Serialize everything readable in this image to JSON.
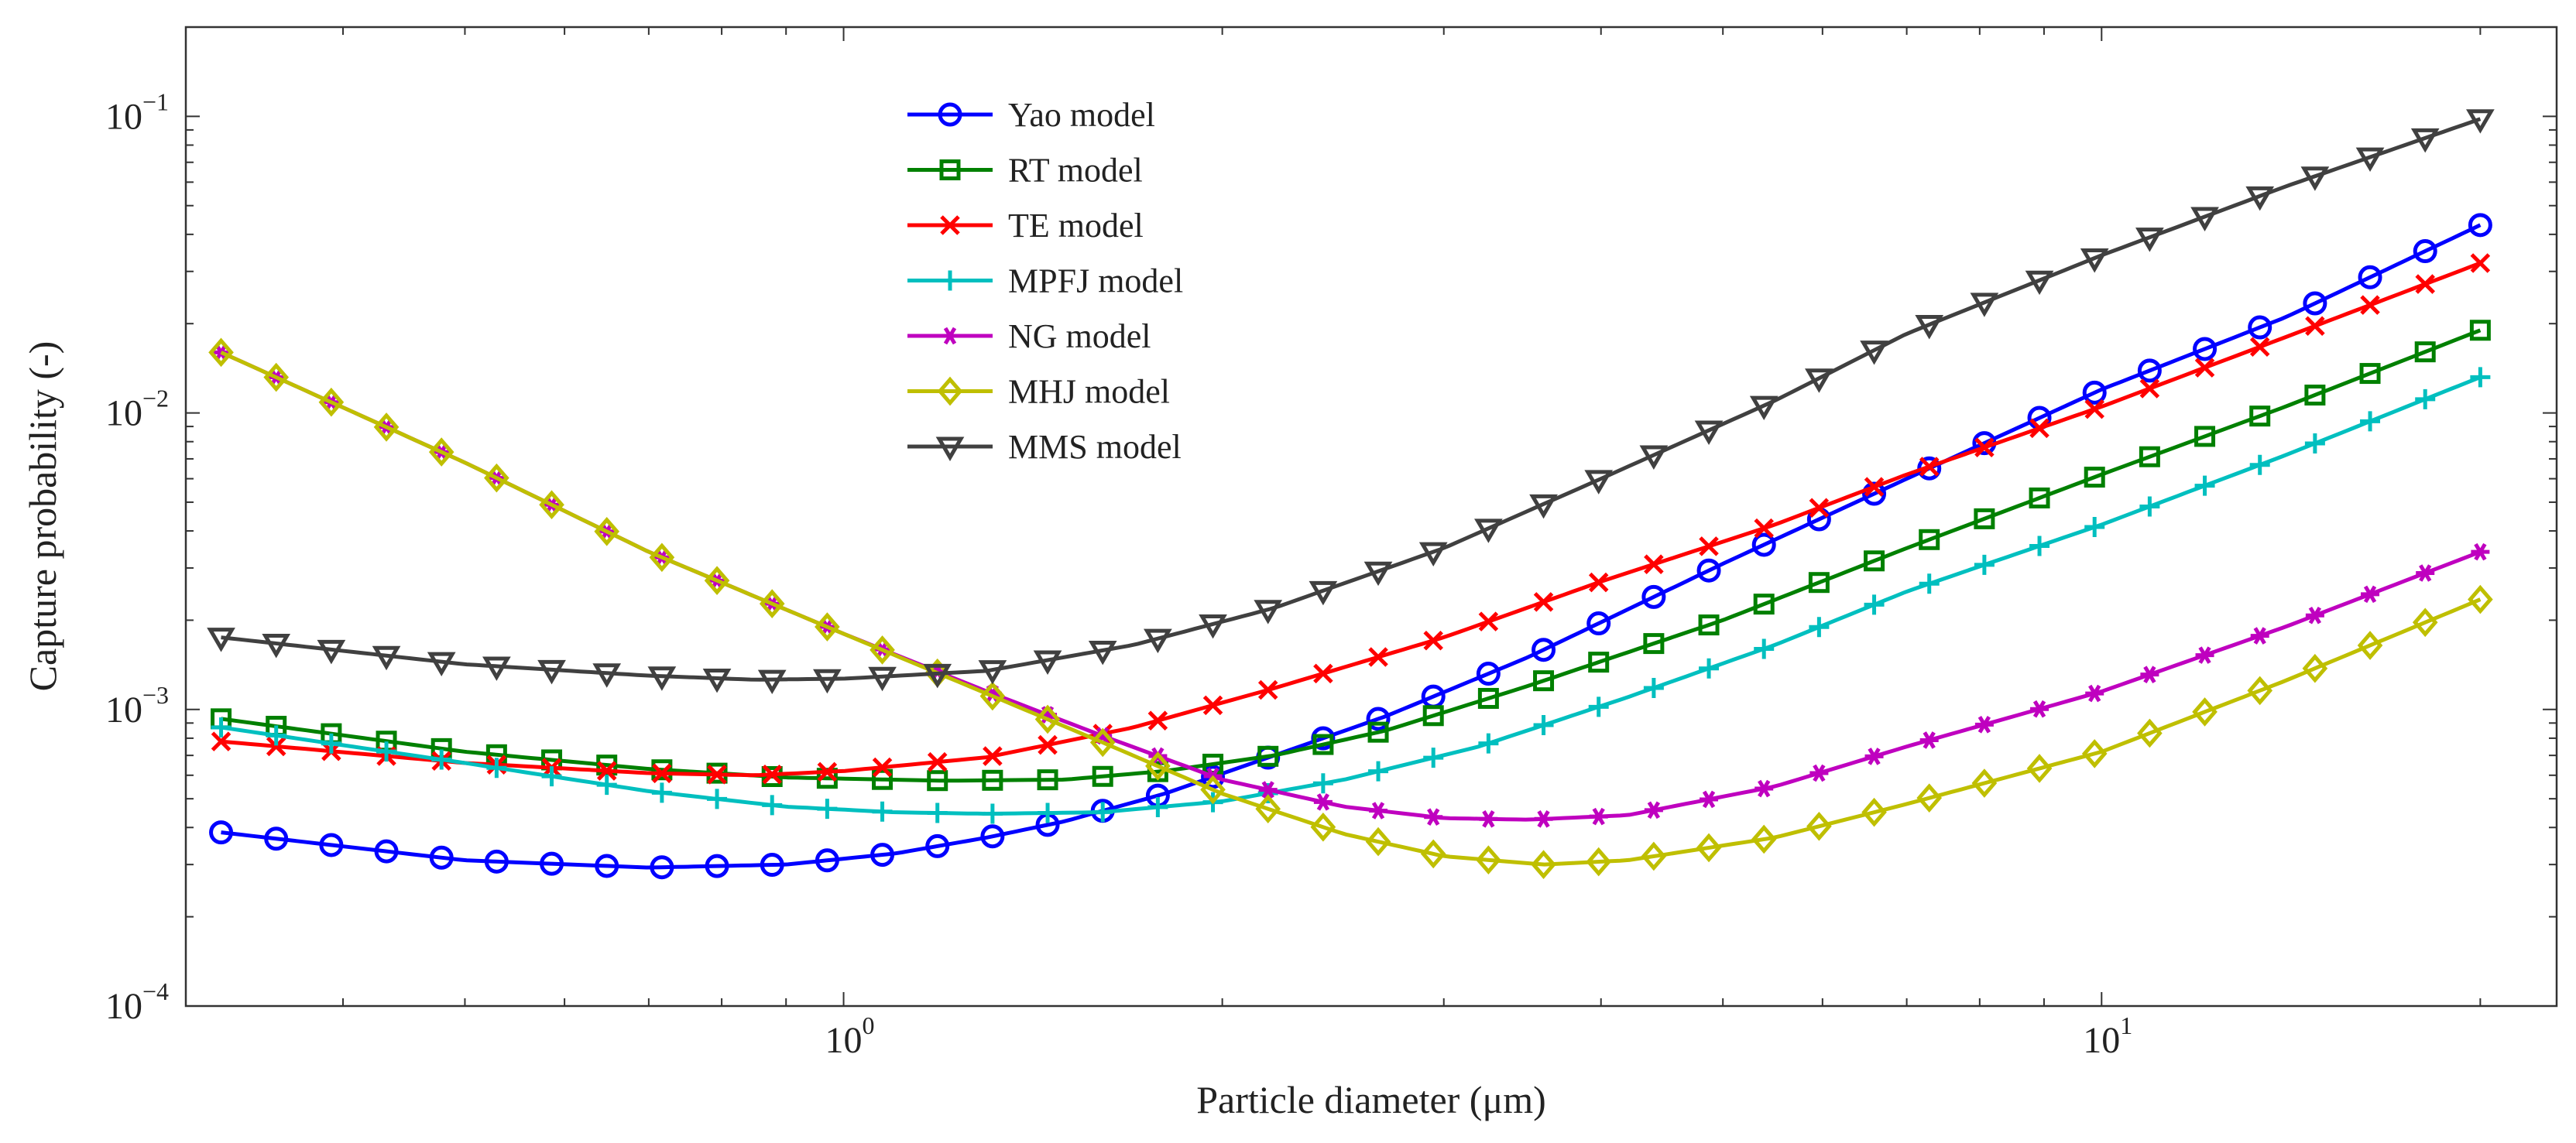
{
  "chart_data": {
    "type": "line",
    "title": "",
    "xlabel": "Particle diameter  (μm)",
    "ylabel": "Capture probability (-)",
    "x_scale": "log",
    "y_scale": "log",
    "xlim": [
      0.3,
      23
    ],
    "ylim": [
      0.0001,
      0.2
    ],
    "grid": false,
    "legend_position": "top-center",
    "x_ticks": [
      {
        "base": "10",
        "exp": "0",
        "value": 1
      },
      {
        "base": "10",
        "exp": "1",
        "value": 10
      }
    ],
    "y_ticks": [
      {
        "base": "10",
        "exp": "−4",
        "value": 0.0001
      },
      {
        "base": "10",
        "exp": "−3",
        "value": 0.001
      },
      {
        "base": "10",
        "exp": "−2",
        "value": 0.01
      },
      {
        "base": "10",
        "exp": "−1",
        "value": 0.1
      }
    ],
    "x_range": [
      0.32,
      20
    ],
    "n_points": 42,
    "series": [
      {
        "name": "Yao model",
        "color": "#0000ff",
        "marker": "circle",
        "values": [
          [
            0.32,
            0.000385
          ],
          [
            0.5,
            0.00031
          ],
          [
            0.7,
            0.000293
          ],
          [
            0.9,
            0.0003
          ],
          [
            1.1,
            0.000327
          ],
          [
            1.3,
            0.00037
          ],
          [
            1.5,
            0.00042
          ],
          [
            1.8,
            0.00052
          ],
          [
            2.2,
            0.0007
          ],
          [
            2.7,
            0.00095
          ],
          [
            3.5,
            0.0015
          ],
          [
            5,
            0.0031
          ],
          [
            7,
            0.006
          ],
          [
            10,
            0.012
          ],
          [
            14,
            0.021
          ],
          [
            20,
            0.043
          ]
        ]
      },
      {
        "name": "RT model",
        "color": "#008000",
        "marker": "square",
        "values": [
          [
            0.32,
            0.00093
          ],
          [
            0.5,
            0.00072
          ],
          [
            0.7,
            0.00063
          ],
          [
            0.9,
            0.00059
          ],
          [
            1.2,
            0.000575
          ],
          [
            1.5,
            0.00058
          ],
          [
            1.8,
            0.00062
          ],
          [
            2.2,
            0.0007
          ],
          [
            2.7,
            0.00085
          ],
          [
            3.5,
            0.0012
          ],
          [
            5,
            0.002
          ],
          [
            7,
            0.0035
          ],
          [
            10,
            0.0062
          ],
          [
            14,
            0.0105
          ],
          [
            20,
            0.019
          ]
        ]
      },
      {
        "name": "TE model",
        "color": "#ff0000",
        "marker": "x",
        "values": [
          [
            0.32,
            0.00078
          ],
          [
            0.5,
            0.00066
          ],
          [
            0.7,
            0.00061
          ],
          [
            0.85,
            0.0006
          ],
          [
            1.0,
            0.00062
          ],
          [
            1.3,
            0.00069
          ],
          [
            1.7,
            0.00087
          ],
          [
            2.2,
            0.00118
          ],
          [
            3,
            0.00175
          ],
          [
            4,
            0.0027
          ],
          [
            5.5,
            0.0042
          ],
          [
            7,
            0.0062
          ],
          [
            10,
            0.0105
          ],
          [
            14,
            0.018
          ],
          [
            20,
            0.032
          ]
        ]
      },
      {
        "name": "MPFJ model",
        "color": "#00bfbf",
        "marker": "plus",
        "values": [
          [
            0.32,
            0.00087
          ],
          [
            0.5,
            0.00066
          ],
          [
            0.7,
            0.00053
          ],
          [
            0.9,
            0.00047
          ],
          [
            1.1,
            0.00045
          ],
          [
            1.3,
            0.000445
          ],
          [
            1.6,
            0.00045
          ],
          [
            2.0,
            0.00049
          ],
          [
            2.5,
            0.00058
          ],
          [
            3.2,
            0.00075
          ],
          [
            4.2,
            0.0011
          ],
          [
            5.5,
            0.00165
          ],
          [
            7,
            0.0025
          ],
          [
            10,
            0.0042
          ],
          [
            14,
            0.0072
          ],
          [
            20,
            0.0132
          ]
        ]
      },
      {
        "name": "NG model",
        "color": "#bf00bf",
        "marker": "asterisk",
        "values": [
          [
            0.32,
            0.016
          ],
          [
            0.5,
            0.0068
          ],
          [
            0.7,
            0.0034
          ],
          [
            1.0,
            0.0018
          ],
          [
            1.3,
            0.00115
          ],
          [
            1.6,
            0.00082
          ],
          [
            2.0,
            0.00058
          ],
          [
            2.5,
            0.00047
          ],
          [
            3.0,
            0.00043
          ],
          [
            3.5,
            0.000425
          ],
          [
            4.2,
            0.00044
          ],
          [
            5.5,
            0.00055
          ],
          [
            7,
            0.00075
          ],
          [
            10,
            0.00115
          ],
          [
            14,
            0.0019
          ],
          [
            20,
            0.0034
          ]
        ]
      },
      {
        "name": "MHJ model",
        "color": "#bfbf00",
        "marker": "diamond",
        "values": [
          [
            0.32,
            0.016
          ],
          [
            0.5,
            0.0068
          ],
          [
            0.7,
            0.0034
          ],
          [
            1.0,
            0.0018
          ],
          [
            1.3,
            0.00113
          ],
          [
            1.6,
            0.00078
          ],
          [
            2.0,
            0.00052
          ],
          [
            2.5,
            0.00038
          ],
          [
            3.0,
            0.00032
          ],
          [
            3.6,
            0.0003
          ],
          [
            4.2,
            0.00031
          ],
          [
            5.5,
            0.00037
          ],
          [
            7,
            0.00048
          ],
          [
            10,
            0.00072
          ],
          [
            14,
            0.00125
          ],
          [
            20,
            0.00235
          ]
        ]
      },
      {
        "name": "MMS model",
        "color": "#404040",
        "marker": "triangle-down",
        "values": [
          [
            0.32,
            0.00175
          ],
          [
            0.5,
            0.00142
          ],
          [
            0.7,
            0.0013
          ],
          [
            0.85,
            0.00126
          ],
          [
            1.0,
            0.00127
          ],
          [
            1.3,
            0.00135
          ],
          [
            1.7,
            0.00165
          ],
          [
            2.2,
            0.0022
          ],
          [
            3,
            0.0035
          ],
          [
            4,
            0.006
          ],
          [
            5.5,
            0.011
          ],
          [
            7,
            0.0185
          ],
          [
            10,
            0.034
          ],
          [
            14,
            0.058
          ],
          [
            20,
            0.098
          ]
        ]
      }
    ]
  }
}
